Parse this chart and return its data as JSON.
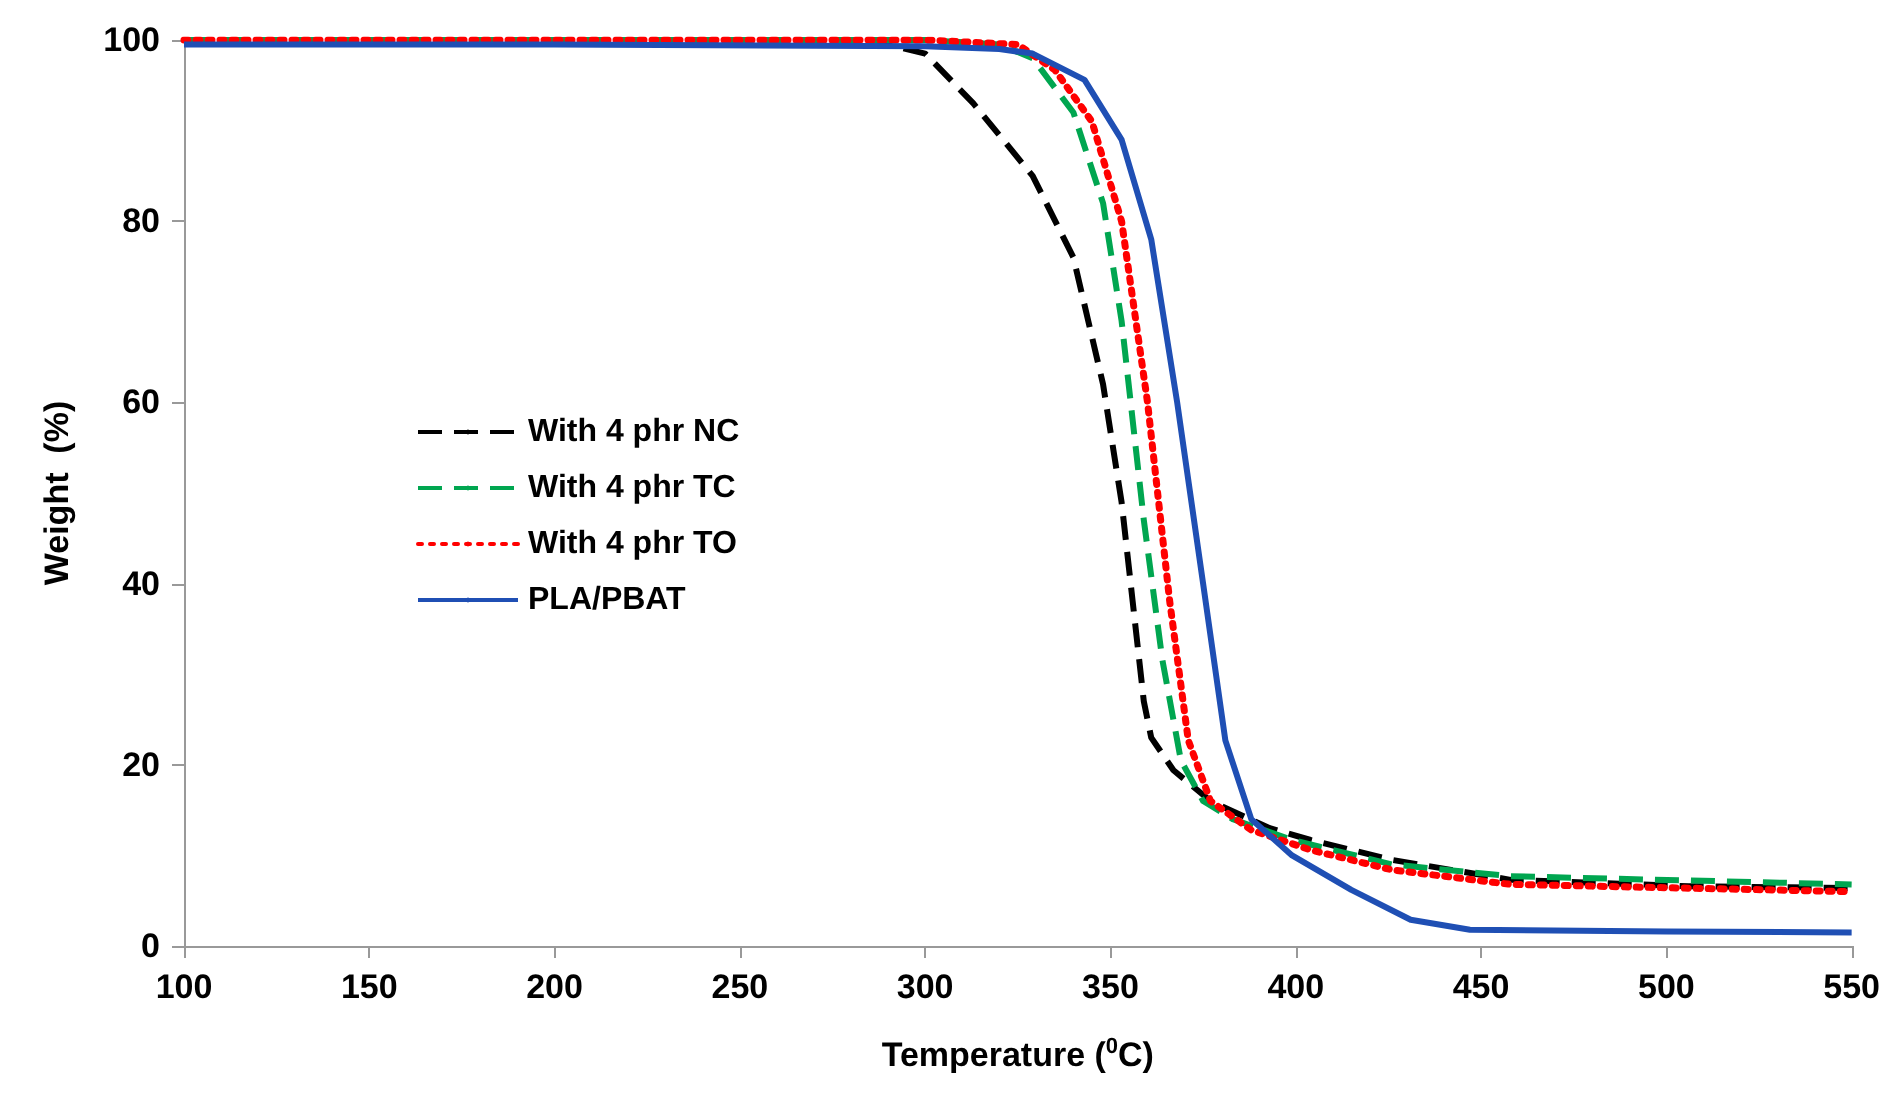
{
  "chart_data": {
    "type": "line",
    "xlabel": "Temperature ($^{0}$C)",
    "ylabel": "Weight  (%)",
    "xlim": [
      100,
      550
    ],
    "xticks": [
      100,
      150,
      200,
      250,
      300,
      350,
      400,
      450,
      500,
      550
    ],
    "ylim": [
      0,
      100
    ],
    "yticks": [
      0,
      20,
      40,
      60,
      80,
      100
    ],
    "grid": false,
    "legend": "left",
    "marker": "none",
    "series": [
      {
        "name": "With 4 phr NC",
        "color": "#000000",
        "line_style": "dashed",
        "x": [
          100,
          200,
          290,
          300,
          313,
          329,
          340,
          348,
          353,
          356,
          359,
          361,
          367,
          377,
          393,
          404,
          426,
          458,
          506,
          550
        ],
        "values": [
          100,
          100,
          99.5,
          98.5,
          93,
          85,
          76,
          62,
          49,
          38,
          27,
          23,
          19.4,
          16,
          13,
          11.7,
          9.5,
          7.3,
          6.6,
          6.4
        ]
      },
      {
        "name": "With 4 phr TC",
        "color": "#00a650",
        "line_style": "dashed",
        "x": [
          100,
          200,
          300,
          320,
          329,
          340,
          348,
          353,
          359,
          364,
          369,
          375,
          383,
          399,
          426,
          458,
          550
        ],
        "values": [
          100,
          100,
          100,
          99.5,
          98,
          92,
          82,
          69,
          47,
          31.6,
          20.5,
          16,
          14,
          11.7,
          9,
          7.7,
          6.8
        ]
      },
      {
        "name": "With 4 phr TO",
        "color": "#ff0000",
        "line_style": "dotted",
        "x": [
          100,
          200,
          300,
          325,
          335,
          345,
          353,
          360,
          366,
          371,
          377,
          388,
          404,
          426,
          458,
          550
        ],
        "values": [
          100,
          100,
          100,
          99.5,
          96.7,
          91,
          80,
          60,
          38,
          22.7,
          16,
          12.8,
          10.6,
          8.4,
          6.8,
          6
        ]
      },
      {
        "name": "PLA/PBAT",
        "color": "#1f4fb4",
        "line_style": "solid",
        "x": [
          100,
          200,
          300,
          320,
          329,
          343,
          353,
          361,
          368,
          375,
          381,
          388,
          399,
          415,
          431,
          447,
          500,
          550
        ],
        "values": [
          99.5,
          99.5,
          99.3,
          99,
          98.5,
          95.6,
          89,
          78,
          60,
          40,
          22.7,
          14,
          10,
          6.2,
          2.9,
          1.8,
          1.6,
          1.5
        ]
      }
    ]
  }
}
